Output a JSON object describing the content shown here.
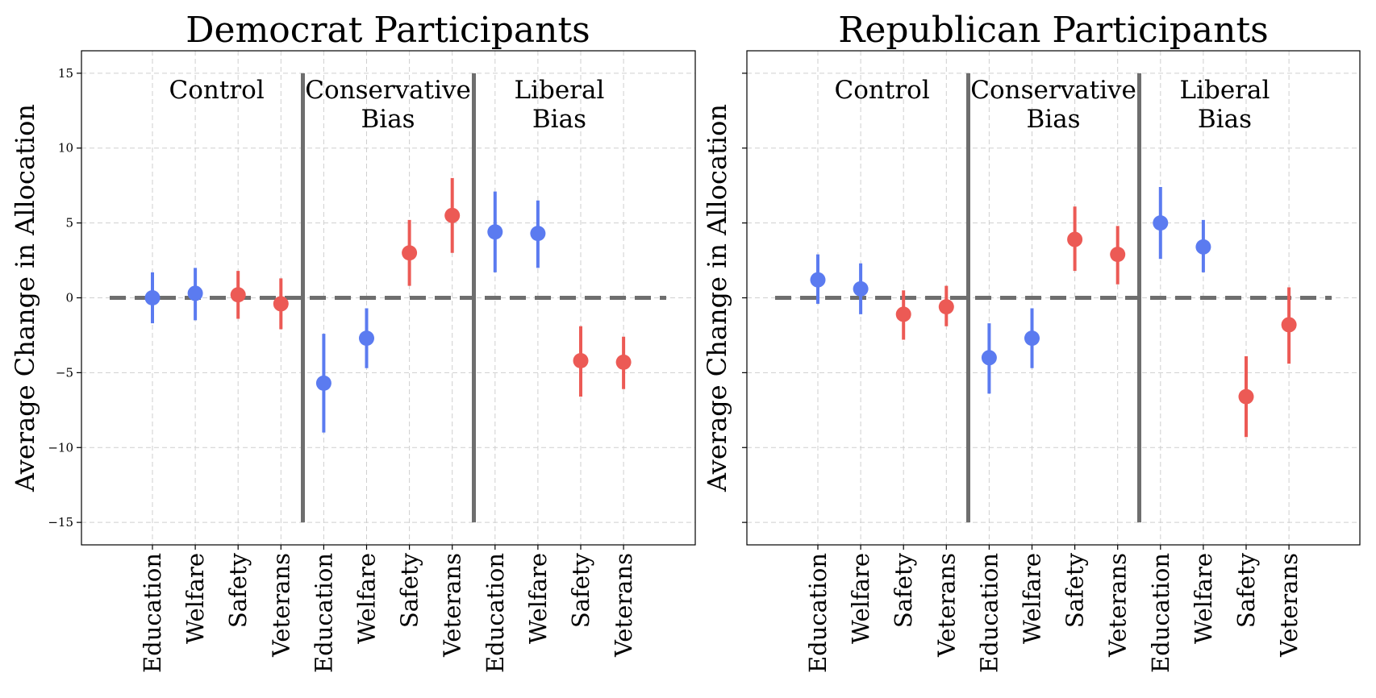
{
  "colors": {
    "blue": "#5b7bf0",
    "red": "#ec5a55",
    "reference": "#6e6e6e"
  },
  "chart_data": [
    {
      "type": "scatter",
      "title": "Democrat Participants",
      "ylabel": "Average Change in Allocation",
      "xlabel": "",
      "ylim": [
        -16.5,
        16.5
      ],
      "yticks": [
        -15,
        -10,
        -5,
        0,
        5,
        10,
        15
      ],
      "grid": true,
      "reference_line_y": 0,
      "groups": [
        {
          "label": [
            "Control"
          ],
          "categories": [
            "Education",
            "Welfare",
            "Safety",
            "Veterans"
          ]
        },
        {
          "label": [
            "Conservative",
            "Bias"
          ],
          "categories": [
            "Education",
            "Welfare",
            "Safety",
            "Veterans"
          ]
        },
        {
          "label": [
            "Liberal",
            "Bias"
          ],
          "categories": [
            "Education",
            "Welfare",
            "Safety",
            "Veterans"
          ]
        }
      ],
      "points": [
        {
          "group": "Control",
          "category": "Education",
          "value": 0.0,
          "low": -1.7,
          "high": 1.7,
          "color": "blue"
        },
        {
          "group": "Control",
          "category": "Welfare",
          "value": 0.3,
          "low": -1.5,
          "high": 2.0,
          "color": "blue"
        },
        {
          "group": "Control",
          "category": "Safety",
          "value": 0.2,
          "low": -1.4,
          "high": 1.8,
          "color": "red"
        },
        {
          "group": "Control",
          "category": "Veterans",
          "value": -0.4,
          "low": -2.1,
          "high": 1.3,
          "color": "red"
        },
        {
          "group": "Conservative Bias",
          "category": "Education",
          "value": -5.7,
          "low": -9.0,
          "high": -2.4,
          "color": "blue"
        },
        {
          "group": "Conservative Bias",
          "category": "Welfare",
          "value": -2.7,
          "low": -4.7,
          "high": -0.7,
          "color": "blue"
        },
        {
          "group": "Conservative Bias",
          "category": "Safety",
          "value": 3.0,
          "low": 0.8,
          "high": 5.2,
          "color": "red"
        },
        {
          "group": "Conservative Bias",
          "category": "Veterans",
          "value": 5.5,
          "low": 3.0,
          "high": 8.0,
          "color": "red"
        },
        {
          "group": "Liberal Bias",
          "category": "Education",
          "value": 4.4,
          "low": 1.7,
          "high": 7.1,
          "color": "blue"
        },
        {
          "group": "Liberal Bias",
          "category": "Welfare",
          "value": 4.3,
          "low": 2.0,
          "high": 6.5,
          "color": "blue"
        },
        {
          "group": "Liberal Bias",
          "category": "Safety",
          "value": -4.2,
          "low": -6.6,
          "high": -1.9,
          "color": "red"
        },
        {
          "group": "Liberal Bias",
          "category": "Veterans",
          "value": -4.3,
          "low": -6.1,
          "high": -2.6,
          "color": "red"
        }
      ]
    },
    {
      "type": "scatter",
      "title": "Republican Participants",
      "ylabel": "Average Change in Allocation",
      "xlabel": "",
      "ylim": [
        -16.5,
        16.5
      ],
      "yticks": [
        -15,
        -10,
        -5,
        0,
        5,
        10,
        15
      ],
      "grid": true,
      "reference_line_y": 0,
      "groups": [
        {
          "label": [
            "Control"
          ],
          "categories": [
            "Education",
            "Welfare",
            "Safety",
            "Veterans"
          ]
        },
        {
          "label": [
            "Conservative",
            "Bias"
          ],
          "categories": [
            "Education",
            "Welfare",
            "Safety",
            "Veterans"
          ]
        },
        {
          "label": [
            "Liberal",
            "Bias"
          ],
          "categories": [
            "Education",
            "Welfare",
            "Safety",
            "Veterans"
          ]
        }
      ],
      "points": [
        {
          "group": "Control",
          "category": "Education",
          "value": 1.2,
          "low": -0.4,
          "high": 2.9,
          "color": "blue"
        },
        {
          "group": "Control",
          "category": "Welfare",
          "value": 0.6,
          "low": -1.1,
          "high": 2.3,
          "color": "blue"
        },
        {
          "group": "Control",
          "category": "Safety",
          "value": -1.1,
          "low": -2.8,
          "high": 0.5,
          "color": "red"
        },
        {
          "group": "Control",
          "category": "Veterans",
          "value": -0.6,
          "low": -1.9,
          "high": 0.8,
          "color": "red"
        },
        {
          "group": "Conservative Bias",
          "category": "Education",
          "value": -4.0,
          "low": -6.4,
          "high": -1.7,
          "color": "blue"
        },
        {
          "group": "Conservative Bias",
          "category": "Welfare",
          "value": -2.7,
          "low": -4.7,
          "high": -0.7,
          "color": "blue"
        },
        {
          "group": "Conservative Bias",
          "category": "Safety",
          "value": 3.9,
          "low": 1.8,
          "high": 6.1,
          "color": "red"
        },
        {
          "group": "Conservative Bias",
          "category": "Veterans",
          "value": 2.9,
          "low": 0.9,
          "high": 4.8,
          "color": "red"
        },
        {
          "group": "Liberal Bias",
          "category": "Education",
          "value": 5.0,
          "low": 2.6,
          "high": 7.4,
          "color": "blue"
        },
        {
          "group": "Liberal Bias",
          "category": "Welfare",
          "value": 3.4,
          "low": 1.7,
          "high": 5.2,
          "color": "blue"
        },
        {
          "group": "Liberal Bias",
          "category": "Safety",
          "value": -6.6,
          "low": -9.3,
          "high": -3.9,
          "color": "red"
        },
        {
          "group": "Liberal Bias",
          "category": "Veterans",
          "value": -1.8,
          "low": -4.4,
          "high": 0.7,
          "color": "red"
        }
      ]
    }
  ]
}
